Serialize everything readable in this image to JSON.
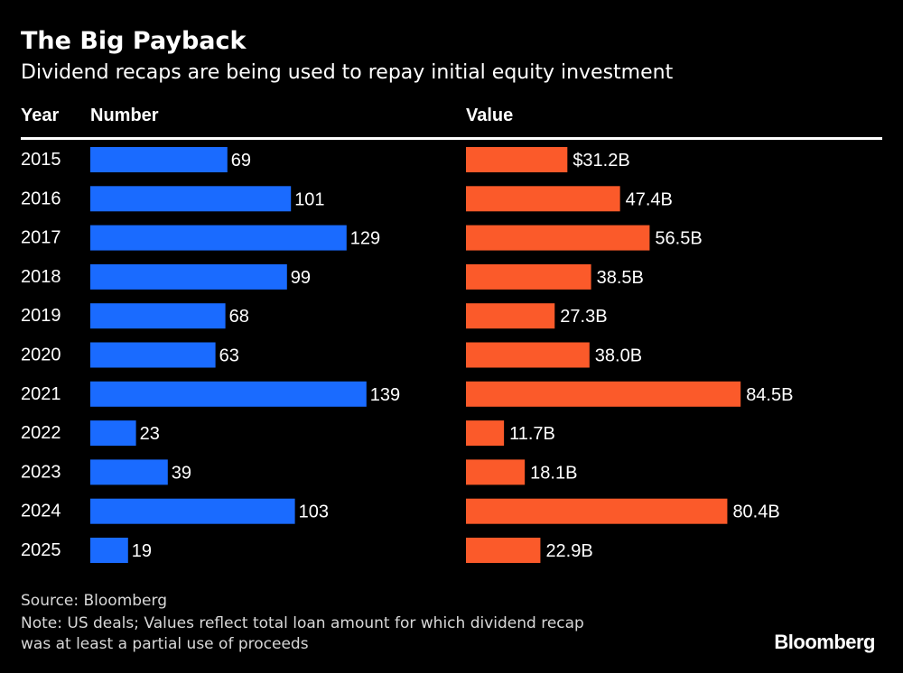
{
  "chart_data": {
    "type": "bar",
    "orientation": "horizontal",
    "title": "The Big Payback",
    "subtitle": "Dividend recaps are being used to repay initial equity investment",
    "column_headers": {
      "year": "Year",
      "number": "Number",
      "value": "Value"
    },
    "categories": [
      "2015",
      "2016",
      "2017",
      "2018",
      "2019",
      "2020",
      "2021",
      "2022",
      "2023",
      "2024",
      "2025"
    ],
    "series": [
      {
        "name": "Number",
        "color": "#1a6bff",
        "values": [
          69,
          101,
          129,
          99,
          68,
          63,
          139,
          23,
          39,
          103,
          19
        ],
        "labels": [
          "69",
          "101",
          "129",
          "99",
          "68",
          "63",
          "139",
          "23",
          "39",
          "103",
          "19"
        ]
      },
      {
        "name": "Value",
        "color": "#fb5a2a",
        "unit": "B",
        "values": [
          31.2,
          47.4,
          56.5,
          38.5,
          27.3,
          38.0,
          84.5,
          11.7,
          18.1,
          80.4,
          22.9
        ],
        "labels": [
          "$31.2B",
          "47.4B",
          "56.5B",
          "38.5B",
          "27.3B",
          "38.0B",
          "84.5B",
          "11.7B",
          "18.1B",
          "80.4B",
          "22.9B"
        ]
      }
    ]
  },
  "footer": {
    "source": "Source: Bloomberg",
    "note_line1": "Note: US deals; Values reflect total loan amount for which dividend recap",
    "note_line2": "was at least a partial use of proceeds",
    "brand": "Bloomberg"
  }
}
